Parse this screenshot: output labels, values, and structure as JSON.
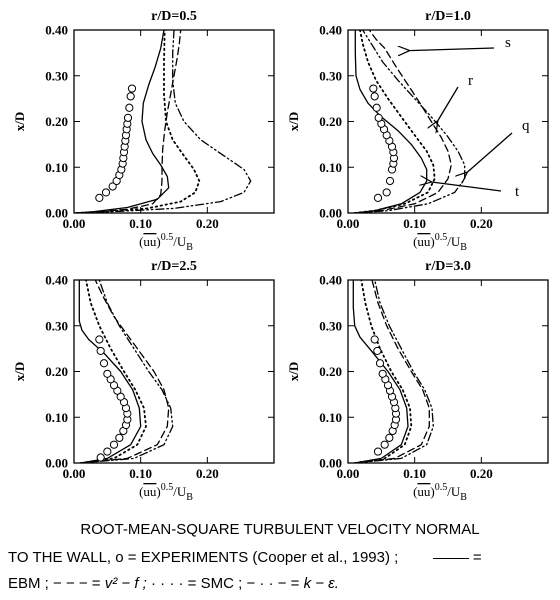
{
  "chart_data": [
    {
      "type": "line",
      "title": "r/D=0.5",
      "xlabel": "(uu)^0.5/U_B",
      "ylabel": "x/D",
      "xlim": [
        0,
        0.3
      ],
      "ylim": [
        0,
        0.4
      ],
      "xticks": [
        "0.00",
        "0.10",
        "0.20"
      ],
      "yticks": [
        "0.00",
        "0.10",
        "0.20",
        "0.30",
        "0.40"
      ],
      "experiments": {
        "x": [
          0.038,
          0.048,
          0.058,
          0.064,
          0.068,
          0.071,
          0.073,
          0.074,
          0.075,
          0.076,
          0.077,
          0.078,
          0.079,
          0.08,
          0.081,
          0.083,
          0.085,
          0.087
        ],
        "y": [
          0.033,
          0.045,
          0.058,
          0.07,
          0.083,
          0.095,
          0.108,
          0.12,
          0.133,
          0.145,
          0.158,
          0.17,
          0.183,
          0.195,
          0.208,
          0.23,
          0.255,
          0.272
        ]
      },
      "series": [
        {
          "key": "EBM",
          "style": "solid",
          "x": [
            0.003,
            0.03,
            0.08,
            0.125,
            0.142,
            0.14,
            0.13,
            0.118,
            0.108,
            0.102,
            0.104,
            0.112,
            0.122,
            0.13,
            0.135
          ],
          "y": [
            0.0,
            0.003,
            0.012,
            0.03,
            0.055,
            0.08,
            0.105,
            0.13,
            0.16,
            0.2,
            0.24,
            0.28,
            0.32,
            0.36,
            0.4
          ]
        },
        {
          "key": "v2f",
          "style": "dashed",
          "x": [
            0.003,
            0.03,
            0.08,
            0.118,
            0.13,
            0.132,
            0.132,
            0.133,
            0.136,
            0.14,
            0.145,
            0.15,
            0.155,
            0.158,
            0.16
          ],
          "y": [
            0.0,
            0.002,
            0.008,
            0.02,
            0.04,
            0.07,
            0.1,
            0.14,
            0.18,
            0.22,
            0.26,
            0.3,
            0.34,
            0.37,
            0.4
          ]
        },
        {
          "key": "SMC",
          "style": "dotted",
          "x": [
            0.003,
            0.05,
            0.11,
            0.16,
            0.182,
            0.188,
            0.18,
            0.165,
            0.148,
            0.138,
            0.135,
            0.135,
            0.136
          ],
          "y": [
            0.0,
            0.003,
            0.01,
            0.025,
            0.045,
            0.07,
            0.095,
            0.125,
            0.16,
            0.2,
            0.26,
            0.33,
            0.4
          ]
        },
        {
          "key": "k-eps",
          "style": "dashdot",
          "x": [
            0.003,
            0.06,
            0.15,
            0.22,
            0.255,
            0.265,
            0.255,
            0.225,
            0.19,
            0.165,
            0.152,
            0.148,
            0.148,
            0.15
          ],
          "y": [
            0.0,
            0.003,
            0.01,
            0.025,
            0.045,
            0.07,
            0.095,
            0.125,
            0.16,
            0.2,
            0.24,
            0.29,
            0.35,
            0.4
          ]
        }
      ]
    },
    {
      "type": "line",
      "title": "r/D=1.0",
      "xlabel": "(uu)^0.5/U_B",
      "ylabel": "x/D",
      "xlim": [
        0,
        0.3
      ],
      "ylim": [
        0,
        0.4
      ],
      "xticks": [
        "0.00",
        "0.10",
        "0.20"
      ],
      "yticks": [
        "0.00",
        "0.10",
        "0.20",
        "0.30",
        "0.40"
      ],
      "experiments": {
        "x": [
          0.045,
          0.058,
          0.063,
          0.066,
          0.068,
          0.069,
          0.068,
          0.066,
          0.062,
          0.058,
          0.054,
          0.05,
          0.046,
          0.043,
          0.04,
          0.038
        ],
        "y": [
          0.033,
          0.045,
          0.07,
          0.095,
          0.108,
          0.12,
          0.133,
          0.145,
          0.158,
          0.17,
          0.183,
          0.195,
          0.208,
          0.23,
          0.255,
          0.272
        ]
      },
      "series": [
        {
          "key": "EBM",
          "style": "solid",
          "x": [
            0.01,
            0.04,
            0.08,
            0.108,
            0.118,
            0.118,
            0.11,
            0.095,
            0.075,
            0.05,
            0.03,
            0.018,
            0.012,
            0.011,
            0.011
          ],
          "y": [
            0.0,
            0.005,
            0.02,
            0.045,
            0.07,
            0.095,
            0.12,
            0.15,
            0.18,
            0.21,
            0.24,
            0.27,
            0.3,
            0.35,
            0.4
          ]
        },
        {
          "key": "v2f",
          "style": "dashed",
          "x": [
            0.01,
            0.05,
            0.1,
            0.135,
            0.15,
            0.155,
            0.15,
            0.14,
            0.125,
            0.108,
            0.09,
            0.072,
            0.055,
            0.042,
            0.032
          ],
          "y": [
            0.0,
            0.005,
            0.02,
            0.045,
            0.075,
            0.105,
            0.135,
            0.165,
            0.2,
            0.24,
            0.28,
            0.32,
            0.36,
            0.38,
            0.4
          ]
        },
        {
          "key": "SMC",
          "style": "dotted",
          "x": [
            0.01,
            0.04,
            0.085,
            0.12,
            0.13,
            0.128,
            0.118,
            0.1,
            0.08,
            0.06,
            0.042,
            0.03,
            0.022,
            0.018
          ],
          "y": [
            0.0,
            0.005,
            0.02,
            0.045,
            0.075,
            0.105,
            0.135,
            0.17,
            0.21,
            0.25,
            0.29,
            0.33,
            0.37,
            0.4
          ]
        },
        {
          "key": "k-eps",
          "style": "dashdot",
          "x": [
            0.01,
            0.06,
            0.12,
            0.16,
            0.175,
            0.175,
            0.165,
            0.148,
            0.125,
            0.1,
            0.075,
            0.052,
            0.035,
            0.022
          ],
          "y": [
            0.0,
            0.005,
            0.02,
            0.045,
            0.075,
            0.105,
            0.135,
            0.17,
            0.21,
            0.25,
            0.29,
            0.33,
            0.37,
            0.4
          ]
        }
      ],
      "annotations": [
        {
          "label": "s",
          "target_x": 0.085,
          "target_y": 0.355
        },
        {
          "label": "r",
          "target_x": 0.128,
          "target_y": 0.2
        },
        {
          "label": "q",
          "target_x": 0.172,
          "target_y": 0.088
        },
        {
          "label": "t",
          "target_x": 0.118,
          "target_y": 0.068
        }
      ]
    },
    {
      "type": "line",
      "title": "r/D=2.5",
      "xlabel": "(uu)^0.5/U_B",
      "ylabel": "x/D",
      "xlim": [
        0,
        0.3
      ],
      "ylim": [
        0,
        0.4
      ],
      "xticks": [
        "0.00",
        "0.10",
        "0.20"
      ],
      "yticks": [
        "0.00",
        "0.10",
        "0.20",
        "0.30",
        "0.40"
      ],
      "experiments": {
        "x": [
          0.04,
          0.05,
          0.06,
          0.068,
          0.074,
          0.078,
          0.08,
          0.08,
          0.078,
          0.075,
          0.07,
          0.065,
          0.06,
          0.055,
          0.05,
          0.045,
          0.04,
          0.038
        ],
        "y": [
          0.012,
          0.025,
          0.04,
          0.055,
          0.07,
          0.083,
          0.095,
          0.108,
          0.12,
          0.133,
          0.145,
          0.158,
          0.17,
          0.183,
          0.195,
          0.218,
          0.245,
          0.27
        ]
      },
      "series": [
        {
          "key": "EBM",
          "style": "solid",
          "x": [
            0.01,
            0.05,
            0.085,
            0.1,
            0.098,
            0.088,
            0.07,
            0.045,
            0.022,
            0.012,
            0.008,
            0.008,
            0.008
          ],
          "y": [
            0.0,
            0.01,
            0.04,
            0.08,
            0.12,
            0.16,
            0.2,
            0.24,
            0.27,
            0.29,
            0.31,
            0.35,
            0.4
          ]
        },
        {
          "key": "v2f",
          "style": "dashed",
          "x": [
            0.01,
            0.08,
            0.125,
            0.14,
            0.142,
            0.135,
            0.12,
            0.1,
            0.08,
            0.06,
            0.045,
            0.032
          ],
          "y": [
            0.0,
            0.01,
            0.04,
            0.08,
            0.12,
            0.16,
            0.2,
            0.24,
            0.28,
            0.32,
            0.36,
            0.4
          ]
        },
        {
          "key": "SMC",
          "style": "dotted",
          "x": [
            0.01,
            0.06,
            0.095,
            0.108,
            0.105,
            0.092,
            0.075,
            0.055,
            0.038,
            0.025,
            0.018
          ],
          "y": [
            0.0,
            0.01,
            0.04,
            0.08,
            0.12,
            0.16,
            0.2,
            0.25,
            0.3,
            0.35,
            0.4
          ]
        },
        {
          "key": "k-eps",
          "style": "dashdot",
          "x": [
            0.01,
            0.09,
            0.135,
            0.148,
            0.145,
            0.132,
            0.112,
            0.09,
            0.068,
            0.05,
            0.038
          ],
          "y": [
            0.0,
            0.01,
            0.04,
            0.08,
            0.12,
            0.16,
            0.2,
            0.25,
            0.3,
            0.35,
            0.4
          ]
        }
      ]
    },
    {
      "type": "line",
      "title": "r/D=3.0",
      "xlabel": "(uu)^0.5/U_B",
      "ylabel": "x/D",
      "xlim": [
        0,
        0.3
      ],
      "ylim": [
        0,
        0.4
      ],
      "xticks": [
        "0.00",
        "0.10",
        "0.20"
      ],
      "yticks": [
        "0.00",
        "0.10",
        "0.20",
        "0.30",
        "0.40"
      ],
      "experiments": {
        "x": [
          0.045,
          0.055,
          0.062,
          0.067,
          0.07,
          0.072,
          0.072,
          0.071,
          0.069,
          0.066,
          0.063,
          0.06,
          0.056,
          0.052,
          0.048,
          0.044,
          0.04
        ],
        "y": [
          0.025,
          0.04,
          0.055,
          0.07,
          0.083,
          0.095,
          0.108,
          0.12,
          0.133,
          0.145,
          0.158,
          0.17,
          0.183,
          0.195,
          0.218,
          0.245,
          0.27
        ]
      },
      "series": [
        {
          "key": "EBM",
          "style": "solid",
          "x": [
            0.01,
            0.05,
            0.08,
            0.09,
            0.088,
            0.078,
            0.06,
            0.038,
            0.018,
            0.01,
            0.008,
            0.008
          ],
          "y": [
            0.0,
            0.01,
            0.04,
            0.08,
            0.12,
            0.16,
            0.2,
            0.24,
            0.275,
            0.3,
            0.34,
            0.4
          ]
        },
        {
          "key": "v2f",
          "style": "dashed",
          "x": [
            0.01,
            0.07,
            0.11,
            0.122,
            0.122,
            0.112,
            0.095,
            0.075,
            0.058,
            0.045,
            0.036
          ],
          "y": [
            0.0,
            0.01,
            0.04,
            0.08,
            0.12,
            0.16,
            0.2,
            0.25,
            0.3,
            0.35,
            0.4
          ]
        },
        {
          "key": "SMC",
          "style": "dotted",
          "x": [
            0.01,
            0.055,
            0.085,
            0.095,
            0.093,
            0.082,
            0.065,
            0.048,
            0.035,
            0.026,
            0.02
          ],
          "y": [
            0.0,
            0.01,
            0.04,
            0.08,
            0.12,
            0.16,
            0.2,
            0.25,
            0.3,
            0.35,
            0.4
          ]
        },
        {
          "key": "k-eps",
          "style": "dashdot",
          "x": [
            0.01,
            0.08,
            0.118,
            0.128,
            0.126,
            0.115,
            0.098,
            0.08,
            0.062,
            0.048,
            0.04
          ],
          "y": [
            0.0,
            0.01,
            0.04,
            0.08,
            0.12,
            0.16,
            0.2,
            0.25,
            0.3,
            0.35,
            0.4
          ]
        }
      ]
    }
  ],
  "caption": {
    "line1": "ROOT-MEAN-SQUARE TURBULENT VELOCITY NORMAL",
    "line2_prefix": "TO THE WALL,",
    "exp_symbol": "o",
    "line2_exp": "= EXPERIMENTS (Cooper et al., 1993) ;",
    "line2_end": "=",
    "line3_ebm": "EBM ;",
    "line3_dash": "− − − =",
    "line3_v2f": "v² − f ;",
    "line3_dots": "· · · · =",
    "line3_smc": "SMC ;",
    "line3_dashdot": "− · · − =",
    "line3_keps": "k − ε."
  }
}
